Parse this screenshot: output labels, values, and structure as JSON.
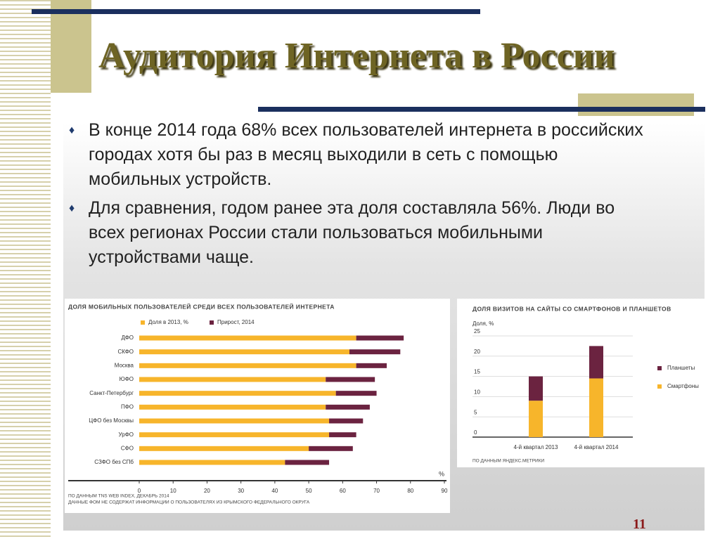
{
  "slide": {
    "title": "Аудитория Интернета в России",
    "bullets": [
      "В конце 2014 года 68% всех пользователей интернета в российских городах хотя бы раз в месяц выходили в сеть с помощью мобильных устройств.",
      "Для сравнения, годом ранее эта доля составляла 56%. Люди во всех регионах России стали пользоваться мобильными устройствами чаще."
    ],
    "page_number": "11"
  },
  "chart_data": [
    {
      "type": "bar",
      "orientation": "horizontal",
      "stacked": true,
      "title": "ДОЛЯ МОБИЛЬНЫХ ПОЛЬЗОВАТЕЛЕЙ СРЕДИ ВСЕХ ПОЛЬЗОВАТЕЛЕЙ ИНТЕРНЕТА",
      "categories": [
        "ДФО",
        "СКФО",
        "Москва",
        "ЮФО",
        "Санкт-Петербург",
        "ПФО",
        "ЦФО без Москвы",
        "УрФО",
        "СФО",
        "СЗФО без СПб"
      ],
      "series": [
        {
          "name": "Доля в 2013, %",
          "color": "#f7b52b",
          "values": [
            64,
            62,
            64,
            55,
            58,
            55,
            56,
            56,
            50,
            43
          ]
        },
        {
          "name": "Прирост, 2014",
          "color": "#6b2340",
          "values": [
            14,
            15,
            9,
            14.5,
            12,
            13,
            10,
            8,
            13,
            13
          ]
        }
      ],
      "xlim": [
        0,
        90
      ],
      "xticks": [
        0,
        10,
        20,
        30,
        40,
        50,
        60,
        70,
        80,
        90
      ],
      "x_unit_label": "%",
      "notes": [
        "ПО ДАННЫМ TNS WEB INDEX, ДЕКАБРЬ 2014",
        "ДАННЫЕ ФОМ НЕ СОДЕРЖАТ ИНФОРМАЦИИ О ПОЛЬЗОВАТЕЛЯХ ИЗ КРЫМСКОГО ФЕДЕРАЛЬНОГО ОКРУГА"
      ]
    },
    {
      "type": "bar",
      "orientation": "vertical",
      "stacked": true,
      "title": "ДОЛЯ ВИЗИТОВ НА САЙТЫ СО СМАРТФОНОВ И ПЛАНШЕТОВ",
      "y_label": "Доля, %",
      "categories": [
        "4-й квартал 2013",
        "4-й квартал 2014"
      ],
      "series": [
        {
          "name": "Смартфоны",
          "color": "#f7b52b",
          "values": [
            9,
            14.5
          ]
        },
        {
          "name": "Планшеты",
          "color": "#6b2340",
          "values": [
            6,
            8
          ]
        }
      ],
      "ylim": [
        0,
        25
      ],
      "yticks": [
        0,
        5,
        10,
        15,
        20,
        25
      ],
      "grid": true,
      "notes": [
        "ПО ДАННЫМ ЯНДЕКС.МЕТРИКИ"
      ]
    }
  ]
}
